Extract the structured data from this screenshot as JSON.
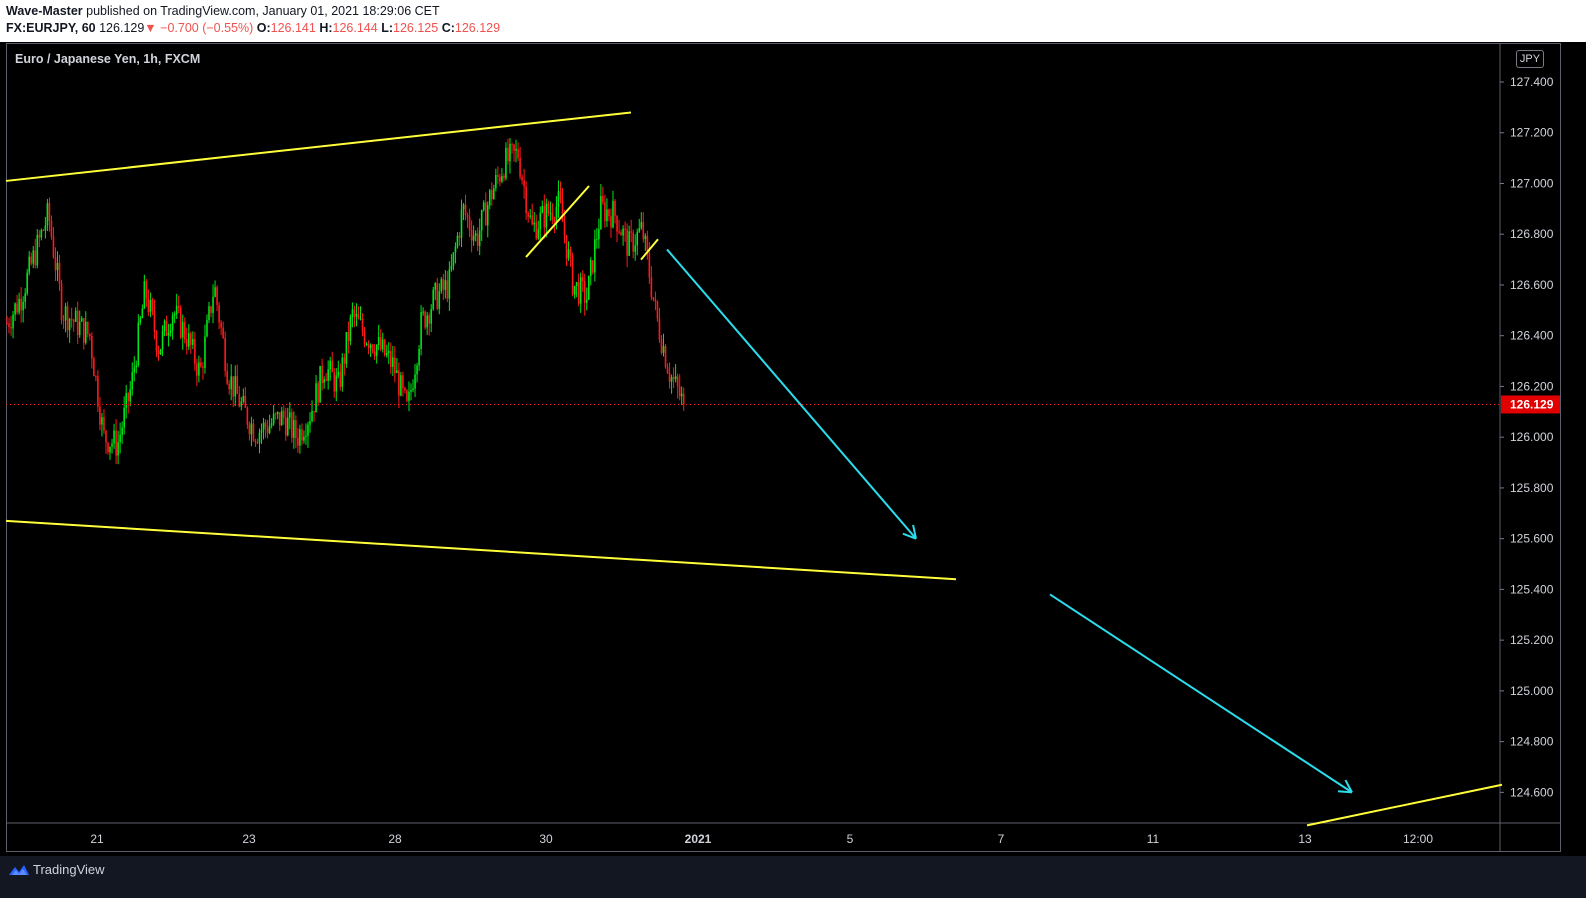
{
  "header": {
    "author": "Wave-Master",
    "published_text": "published on TradingView.com, January 01, 2021 18:29:06 CET",
    "symbol": "FX:EURJPY, 60",
    "last": "126.129",
    "change_arrow": "▼",
    "change": "−0.700 (−0.55%)",
    "o_label": "O:",
    "o_value": "126.141",
    "h_label": "H:",
    "h_value": "126.144",
    "l_label": "L:",
    "l_value": "126.125",
    "c_label": "C:",
    "c_value": "126.129"
  },
  "chart_title": "Euro / Japanese Yen, 1h, FXCM",
  "currency": "JPY",
  "footer": {
    "brand": "TradingView",
    "logo_icon": "tradingview-logo-icon"
  },
  "colors": {
    "background": "#000000",
    "up": "#00e617",
    "down": "#ff1a1a",
    "trendline": "#ffff3a",
    "projection_arrow": "#2bdcec",
    "last_price_label": "#e00000"
  },
  "chart_data": {
    "type": "candlestick",
    "title": "Euro / Japanese Yen, 1h, FXCM",
    "ylim": [
      124.45,
      127.6
    ],
    "y_ticks": [
      "127.400",
      "127.200",
      "127.000",
      "126.800",
      "126.600",
      "126.400",
      "126.200",
      "126.000",
      "125.800",
      "125.600",
      "125.400",
      "125.200",
      "125.000",
      "124.800",
      "124.600"
    ],
    "x_ticks": [
      "21",
      "23",
      "28",
      "30",
      "2021",
      "5",
      "7",
      "11",
      "13",
      "12:00"
    ],
    "last_price": "126.129",
    "grid": false,
    "path": [
      [
        0,
        126.45
      ],
      [
        1,
        126.55
      ],
      [
        2,
        126.72
      ],
      [
        3,
        126.88
      ],
      [
        4,
        126.5
      ],
      [
        5,
        126.45
      ],
      [
        6,
        126.4
      ],
      [
        7,
        126.0
      ],
      [
        8,
        125.97
      ],
      [
        9,
        126.2
      ],
      [
        10,
        126.58
      ],
      [
        11,
        126.35
      ],
      [
        12,
        126.5
      ],
      [
        13,
        126.4
      ],
      [
        14,
        126.25
      ],
      [
        15,
        126.6
      ],
      [
        16,
        126.25
      ],
      [
        17,
        126.12
      ],
      [
        18,
        126.02
      ],
      [
        19,
        126.05
      ],
      [
        20,
        126.08
      ],
      [
        21,
        126.0
      ],
      [
        22,
        126.1
      ],
      [
        23,
        126.28
      ],
      [
        24,
        126.2
      ],
      [
        25,
        126.48
      ],
      [
        26,
        126.4
      ],
      [
        27,
        126.35
      ],
      [
        28,
        126.28
      ],
      [
        29,
        126.1
      ],
      [
        30,
        126.45
      ],
      [
        31,
        126.55
      ],
      [
        32,
        126.6
      ],
      [
        33,
        126.9
      ],
      [
        34,
        126.78
      ],
      [
        35,
        126.95
      ],
      [
        36,
        127.08
      ],
      [
        37,
        127.12
      ],
      [
        38,
        126.82
      ],
      [
        39,
        126.88
      ],
      [
        40,
        126.92
      ],
      [
        41,
        126.6
      ],
      [
        42,
        126.55
      ],
      [
        43,
        126.9
      ],
      [
        44,
        126.88
      ],
      [
        45,
        126.75
      ],
      [
        46,
        126.82
      ],
      [
        47,
        126.48
      ],
      [
        48,
        126.25
      ],
      [
        49,
        126.13
      ]
    ],
    "trendlines": [
      {
        "name": "upper-channel",
        "color": "yellow",
        "points": [
          [
            0,
            127.01
          ],
          [
            62.5,
            127.28
          ]
        ]
      },
      {
        "name": "lower-channel",
        "color": "yellow",
        "points": [
          [
            0,
            125.67
          ],
          [
            95,
            125.44
          ]
        ]
      },
      {
        "name": "minor-trendline-1",
        "color": "yellow",
        "points": [
          [
            52,
            126.71
          ],
          [
            58.3,
            126.99
          ]
        ]
      },
      {
        "name": "minor-trendline-2",
        "color": "yellow",
        "points": [
          [
            63.5,
            126.7
          ],
          [
            65.2,
            126.78
          ]
        ]
      },
      {
        "name": "future-trendline",
        "color": "yellow",
        "points": [
          [
            130.1,
            124.47
          ],
          [
            149.6,
            124.63
          ]
        ]
      }
    ],
    "projections": [
      {
        "name": "projection-arrow-1",
        "color": "cyan",
        "from": [
          66.1,
          126.74
        ],
        "to": [
          91,
          125.6
        ]
      },
      {
        "name": "projection-arrow-2",
        "color": "cyan",
        "from": [
          104.4,
          125.38
        ],
        "to": [
          134.6,
          124.6
        ]
      }
    ]
  }
}
